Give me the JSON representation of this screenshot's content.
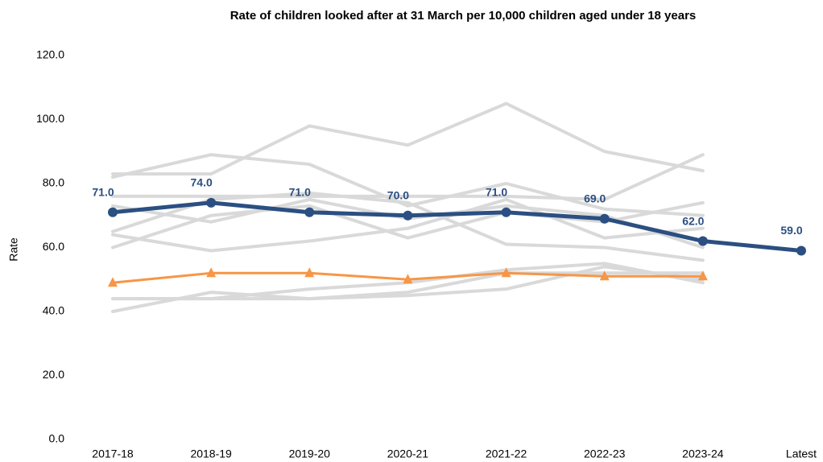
{
  "chart_data": {
    "type": "line",
    "title": "Rate of children looked after at 31 March per 10,000 children aged under 18 years",
    "y_label": "Rate",
    "categories": [
      "2017-18",
      "2018-19",
      "2019-20",
      "2020-21",
      "2021-22",
      "2022-23",
      "2023-24",
      "Latest"
    ],
    "ylim": [
      0,
      120
    ],
    "yticks": [
      {
        "value": 0,
        "label": "0.0"
      },
      {
        "value": 20,
        "label": "20.0"
      },
      {
        "value": 40,
        "label": "40.0"
      },
      {
        "value": 60,
        "label": "60.0"
      },
      {
        "value": 80,
        "label": "80.0"
      },
      {
        "value": 100,
        "label": "100.0"
      },
      {
        "value": 120,
        "label": "120.0"
      }
    ],
    "grid": false,
    "series": [
      {
        "color": "#d9d9d9",
        "values": [
          83,
          83,
          98,
          92,
          105,
          90,
          84,
          null
        ]
      },
      {
        "color": "#d9d9d9",
        "values": [
          82,
          89,
          86,
          73,
          80,
          72,
          70,
          null
        ]
      },
      {
        "color": "#d9d9d9",
        "values": [
          76,
          76,
          76,
          76,
          76,
          75,
          89,
          null
        ]
      },
      {
        "color": "#d9d9d9",
        "values": [
          65,
          75,
          77,
          74,
          61,
          60,
          56,
          null
        ]
      },
      {
        "color": "#d9d9d9",
        "values": [
          64,
          59,
          62,
          66,
          75,
          63,
          66,
          null
        ]
      },
      {
        "color": "#d9d9d9",
        "values": [
          60,
          70,
          73,
          63,
          71,
          68,
          74,
          null
        ]
      },
      {
        "color": "#d9d9d9",
        "values": [
          73,
          68,
          75,
          69,
          73,
          70,
          60,
          null
        ]
      },
      {
        "color": "#d9d9d9",
        "values": [
          44,
          44,
          47,
          49,
          53,
          55,
          49,
          null
        ]
      },
      {
        "color": "#d9d9d9",
        "values": [
          40,
          46,
          44,
          45,
          47,
          54,
          50,
          null
        ]
      },
      {
        "color": "#d9d9d9",
        "values": [
          44,
          44,
          44,
          46,
          52,
          52,
          52,
          null
        ]
      },
      {
        "color": "#f79646",
        "marker": "triangle",
        "values": [
          49,
          52,
          52,
          50,
          52,
          51,
          51,
          null
        ]
      },
      {
        "color": "#2b4f81",
        "marker": "circle",
        "values": [
          71,
          74,
          71,
          70,
          71,
          69,
          62,
          59
        ],
        "value_labels": [
          "71.0",
          "74.0",
          "71.0",
          "70.0",
          "71.0",
          "69.0",
          "62.0",
          "59.0"
        ]
      }
    ]
  }
}
